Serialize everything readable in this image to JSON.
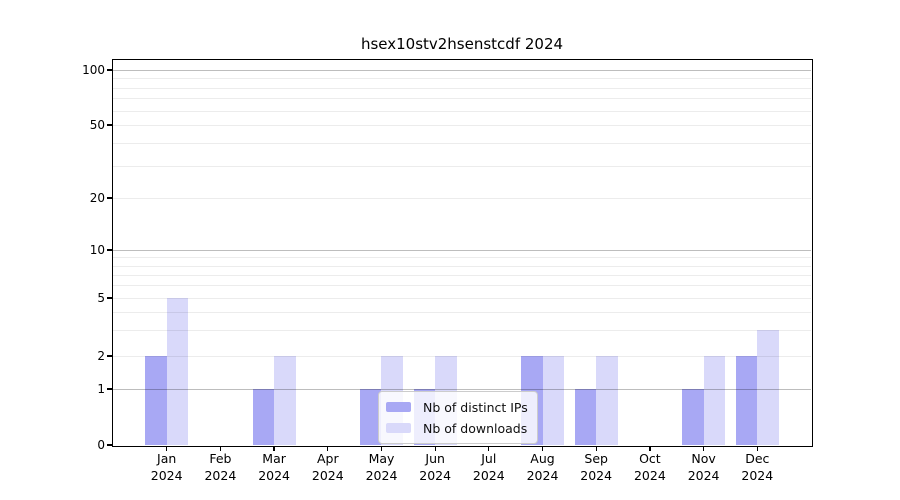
{
  "chart_data": {
    "type": "bar",
    "title": "hsex10stv2hsenstcdf 2024",
    "categories": [
      "Jan",
      "Feb",
      "Mar",
      "Apr",
      "May",
      "Jun",
      "Jul",
      "Aug",
      "Sep",
      "Oct",
      "Nov",
      "Dec"
    ],
    "year_label": "2024",
    "series": [
      {
        "name": "Nb of distinct IPs",
        "color": "#a8a8f4",
        "values": [
          2,
          0,
          1,
          0,
          1,
          1,
          0,
          2,
          1,
          0,
          1,
          2
        ]
      },
      {
        "name": "Nb of downloads",
        "color": "#d9d9fa",
        "values": [
          5,
          0,
          2,
          0,
          2,
          2,
          0,
          2,
          2,
          0,
          2,
          3
        ]
      }
    ],
    "y_axis": {
      "scale": "log-like (0 baseline, log spacing above 1)",
      "tick_values": [
        0,
        1,
        2,
        5,
        10,
        20,
        50,
        100
      ],
      "tick_labels": [
        "0",
        "1",
        "2",
        "5",
        "10",
        "20",
        "50",
        "100"
      ],
      "major_grid_values": [
        1,
        10,
        100
      ],
      "minor_grid_values": [
        2,
        3,
        4,
        5,
        6,
        7,
        8,
        9,
        20,
        30,
        40,
        50,
        60,
        70,
        80,
        90
      ],
      "ylim_top": 115
    },
    "legend": {
      "entries": [
        "Nb of distinct IPs",
        "Nb of downloads"
      ],
      "position": "lower center"
    },
    "grid": true,
    "frame_color": "#000000",
    "major_grid_color": "#bdbdbd",
    "minor_grid_color": "#ececec"
  }
}
